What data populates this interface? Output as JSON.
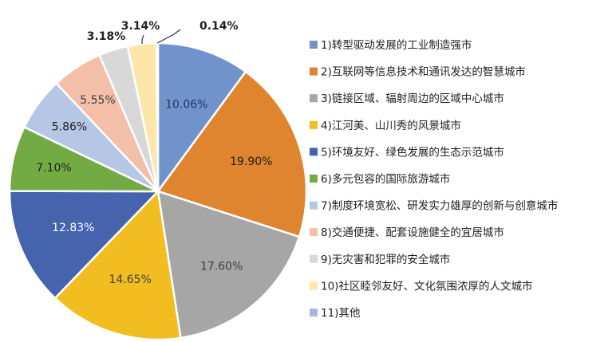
{
  "chart_data": {
    "type": "pie",
    "title": "",
    "legend_position": "right",
    "categories": [
      "1)转型驱动发展的工业制造强市",
      "2)互联网等信息技术和通讯发达的智慧城市",
      "3)链接区域、辐射周边的区域中心城市",
      "4)江河美、山川秀的风景城市",
      "5)环境友好、绿色发展的生态示范城市",
      "6)多元包容的国际旅游城市",
      "7)制度环境宽松、研发实力雄厚的创新与创意城市",
      "8)交通便捷、配套设施健全的宜居城市",
      "9)无灾害和犯罪的安全城市",
      "10)社区睦邻友好、文化氛围浓厚的人文城市",
      "11)其他"
    ],
    "values": [
      10.06,
      19.9,
      17.6,
      14.65,
      12.83,
      7.1,
      5.86,
      5.55,
      3.18,
      3.14,
      0.14
    ],
    "value_labels": [
      "10.06%",
      "19.90%",
      "17.60%",
      "14.65%",
      "12.83%",
      "7.10%",
      "5.86%",
      "5.55%",
      "3.18%",
      "3.14%",
      "0.14%"
    ],
    "colors": [
      "#7193cc",
      "#e0852f",
      "#a6a6a6",
      "#f2bd21",
      "#4663ad",
      "#72ab43",
      "#b6c7e6",
      "#f4bfa8",
      "#d8d8d8",
      "#fde6a8",
      "#a5b8de"
    ],
    "label_colors": [
      "#1f3864",
      "#1f1f1f",
      "#404040",
      "#404040",
      "#ffffff",
      "#1f1f1f",
      "#1f1f1f",
      "#404040",
      "#1f1f1f",
      "#1f1f1f",
      "#1f1f1f"
    ]
  }
}
